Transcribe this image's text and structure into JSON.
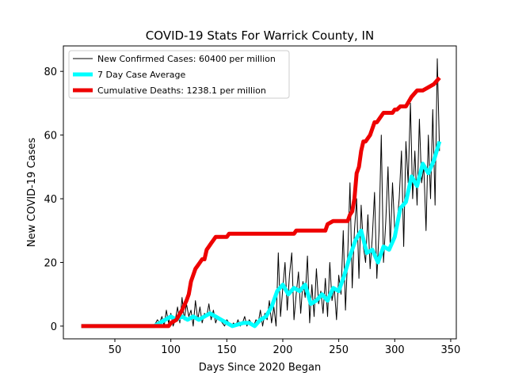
{
  "chart_data": {
    "type": "line",
    "title": "COVID-19 Stats For Warrick County, IN",
    "xlabel": "Days Since 2020 Began",
    "ylabel": "New COVID-19 Cases",
    "xlim": [
      4,
      355
    ],
    "ylim": [
      -4,
      88
    ],
    "x_ticks": [
      50,
      100,
      150,
      200,
      250,
      300,
      350
    ],
    "y_ticks": [
      0,
      20,
      40,
      60,
      80
    ],
    "grid": false,
    "legend_placement": "top-left",
    "series": [
      {
        "name": "New Confirmed Cases: 60400 per million",
        "color": "#000000",
        "line_width": 1,
        "x": [
          20,
          85,
          88,
          90,
          92,
          94,
          96,
          98,
          100,
          102,
          104,
          106,
          108,
          110,
          112,
          114,
          116,
          118,
          120,
          122,
          124,
          126,
          128,
          130,
          132,
          134,
          136,
          138,
          140,
          142,
          144,
          146,
          148,
          150,
          152,
          154,
          156,
          158,
          160,
          162,
          164,
          166,
          168,
          170,
          172,
          174,
          176,
          178,
          180,
          182,
          184,
          186,
          188,
          190,
          192,
          194,
          196,
          198,
          200,
          202,
          204,
          206,
          208,
          210,
          212,
          214,
          216,
          218,
          220,
          222,
          224,
          226,
          228,
          230,
          232,
          234,
          236,
          238,
          240,
          242,
          244,
          246,
          248,
          250,
          252,
          254,
          256,
          258,
          260,
          262,
          264,
          266,
          268,
          270,
          272,
          274,
          276,
          278,
          280,
          282,
          284,
          286,
          288,
          290,
          292,
          294,
          296,
          298,
          300,
          302,
          304,
          306,
          308,
          310,
          312,
          314,
          316,
          318,
          320,
          322,
          324,
          326,
          328,
          330,
          332,
          334,
          336,
          338,
          340
        ],
        "y": [
          0,
          0,
          2,
          1,
          3,
          0,
          5,
          1,
          4,
          0,
          2,
          6,
          1,
          9,
          2,
          7,
          3,
          5,
          0,
          8,
          2,
          6,
          1,
          4,
          3,
          7,
          2,
          5,
          1,
          3,
          2,
          1,
          0,
          2,
          1,
          0,
          1,
          0,
          2,
          0,
          1,
          3,
          0,
          2,
          1,
          0,
          2,
          1,
          5,
          0,
          4,
          2,
          8,
          1,
          6,
          0,
          23,
          3,
          12,
          20,
          5,
          16,
          23,
          2,
          10,
          17,
          4,
          14,
          9,
          22,
          1,
          13,
          3,
          18,
          7,
          11,
          4,
          15,
          3,
          20,
          8,
          12,
          2,
          16,
          10,
          30,
          5,
          22,
          45,
          12,
          30,
          40,
          15,
          38,
          25,
          20,
          35,
          18,
          28,
          42,
          15,
          30,
          60,
          20,
          33,
          50,
          25,
          45,
          30,
          32,
          40,
          55,
          25,
          58,
          45,
          70,
          40,
          55,
          38,
          65,
          45,
          50,
          30,
          60,
          40,
          68,
          38,
          84,
          55
        ]
      },
      {
        "name": "7 Day Case Average",
        "color": "#00ffff",
        "line_width": 5,
        "x": [
          20,
          85,
          90,
          95,
          100,
          105,
          110,
          115,
          120,
          125,
          130,
          135,
          140,
          145,
          150,
          155,
          160,
          165,
          170,
          175,
          180,
          185,
          190,
          195,
          200,
          205,
          210,
          215,
          220,
          225,
          230,
          235,
          240,
          245,
          250,
          255,
          260,
          265,
          270,
          275,
          280,
          285,
          290,
          295,
          300,
          305,
          310,
          315,
          320,
          325,
          330,
          335,
          340
        ],
        "y": [
          0,
          0,
          1,
          2,
          3,
          2,
          3,
          2,
          3,
          2,
          3,
          4,
          3,
          2,
          1,
          0,
          0.5,
          1,
          1,
          0,
          2,
          3,
          6,
          11,
          13,
          10,
          12,
          11,
          13,
          7,
          8,
          10,
          8,
          12,
          11,
          16,
          22,
          27,
          30,
          23,
          24,
          20,
          25,
          24,
          28,
          37,
          39,
          47,
          44,
          51,
          48,
          52,
          58
        ]
      },
      {
        "name": "Cumulative Deaths: 1238.1 per million",
        "color": "#ee0000",
        "line_width": 5,
        "x": [
          20,
          98,
          100,
          105,
          110,
          114,
          116,
          118,
          120,
          122,
          124,
          126,
          128,
          130,
          132,
          134,
          136,
          138,
          140,
          145,
          150,
          152,
          155,
          160,
          170,
          180,
          190,
          200,
          210,
          212,
          215,
          220,
          230,
          238,
          240,
          245,
          250,
          255,
          258,
          260,
          262,
          264,
          266,
          268,
          270,
          272,
          274,
          276,
          278,
          280,
          282,
          284,
          286,
          288,
          290,
          292,
          294,
          296,
          298,
          300,
          302,
          305,
          310,
          315,
          320,
          325,
          330,
          335,
          340
        ],
        "y": [
          0,
          0,
          1,
          2,
          5,
          8,
          10,
          14,
          16,
          18,
          19,
          20,
          21,
          21,
          24,
          25,
          26,
          27,
          28,
          28,
          28,
          29,
          29,
          29,
          29,
          29,
          29,
          29,
          29,
          30,
          30,
          30,
          30,
          30,
          32,
          33,
          33,
          33,
          33,
          35,
          36,
          40,
          48,
          50,
          55,
          58,
          58,
          59,
          60,
          62,
          64,
          64,
          65,
          66,
          67,
          67,
          67,
          67,
          67,
          68,
          68,
          69,
          69,
          72,
          74,
          74,
          75,
          76,
          78
        ]
      }
    ]
  }
}
